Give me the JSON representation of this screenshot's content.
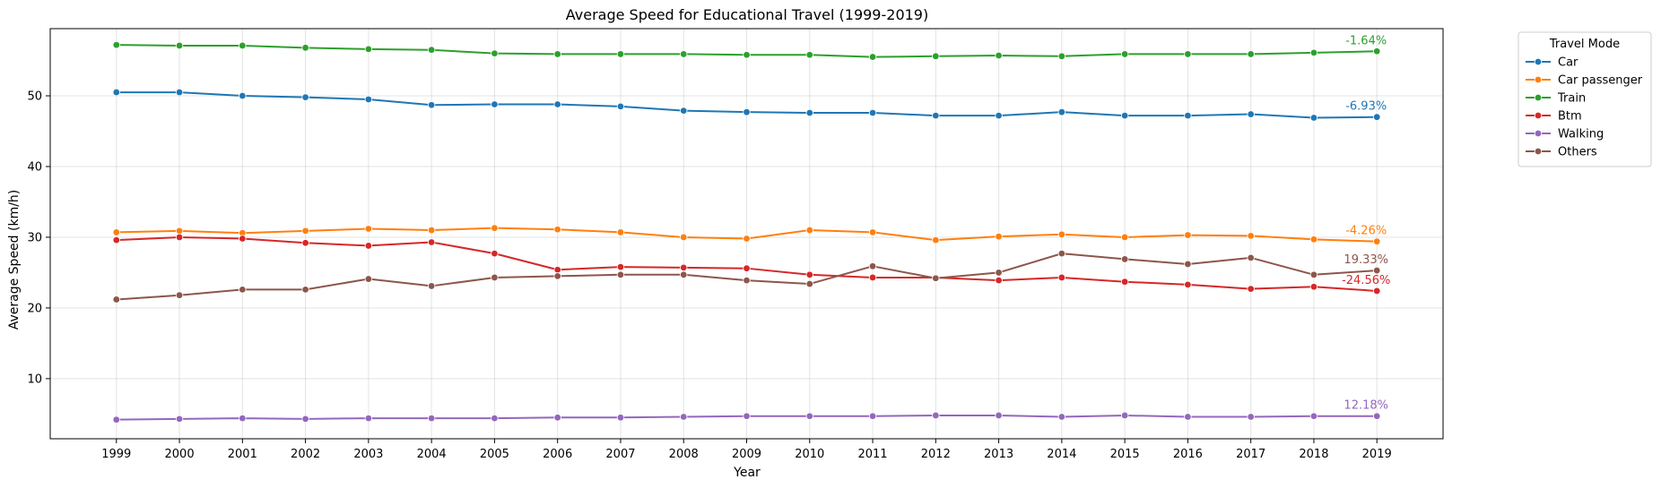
{
  "chart_data": {
    "type": "line",
    "title": "Average Speed for Educational Travel (1999-2019)",
    "xlabel": "Year",
    "ylabel": "Average Speed (km/h)",
    "x": [
      1999,
      2000,
      2001,
      2002,
      2003,
      2004,
      2005,
      2006,
      2007,
      2008,
      2009,
      2010,
      2011,
      2012,
      2013,
      2014,
      2015,
      2016,
      2017,
      2018,
      2019
    ],
    "xlim": [
      1997.95,
      2020.05
    ],
    "ylim": [
      1.5,
      59.5
    ],
    "yticks": [
      10,
      20,
      30,
      40,
      50
    ],
    "grid": true,
    "legend": {
      "title": "Travel Mode",
      "placement": "outside-top-right"
    },
    "series": [
      {
        "name": "Car",
        "color": "#1f77b4",
        "annotation": "-6.93%",
        "values": [
          50.5,
          50.5,
          50.0,
          49.8,
          49.5,
          48.7,
          48.8,
          48.8,
          48.5,
          47.9,
          47.7,
          47.6,
          47.6,
          47.2,
          47.2,
          47.7,
          47.2,
          47.2,
          47.4,
          46.9,
          47.0
        ]
      },
      {
        "name": "Car passenger",
        "color": "#ff7f0e",
        "annotation": "-4.26%",
        "values": [
          30.7,
          30.9,
          30.6,
          30.9,
          31.2,
          31.0,
          31.3,
          31.1,
          30.7,
          30.0,
          29.8,
          31.0,
          30.7,
          29.6,
          30.1,
          30.4,
          30.0,
          30.3,
          30.2,
          29.7,
          29.4
        ]
      },
      {
        "name": "Train",
        "color": "#2ca02c",
        "annotation": "-1.64%",
        "values": [
          57.2,
          57.1,
          57.1,
          56.8,
          56.6,
          56.5,
          56.0,
          55.9,
          55.9,
          55.9,
          55.8,
          55.8,
          55.5,
          55.6,
          55.7,
          55.6,
          55.9,
          55.9,
          55.9,
          56.1,
          56.3
        ]
      },
      {
        "name": "Btm",
        "color": "#d62728",
        "annotation": "-24.56%",
        "values": [
          29.6,
          30.0,
          29.8,
          29.2,
          28.8,
          29.3,
          27.7,
          25.4,
          25.8,
          25.7,
          25.6,
          24.7,
          24.3,
          24.3,
          23.9,
          24.3,
          23.7,
          23.3,
          22.7,
          23.0,
          22.4
        ]
      },
      {
        "name": "Walking",
        "color": "#9467bd",
        "annotation": "12.18%",
        "values": [
          4.2,
          4.3,
          4.4,
          4.3,
          4.4,
          4.4,
          4.4,
          4.5,
          4.5,
          4.6,
          4.7,
          4.7,
          4.7,
          4.8,
          4.8,
          4.6,
          4.8,
          4.6,
          4.6,
          4.7,
          4.7
        ]
      },
      {
        "name": "Others",
        "color": "#8c564b",
        "annotation": "19.33%",
        "values": [
          21.2,
          21.8,
          22.6,
          22.6,
          24.1,
          23.1,
          24.3,
          24.5,
          24.7,
          24.7,
          23.9,
          23.4,
          25.9,
          24.2,
          25.0,
          27.7,
          26.9,
          26.2,
          27.1,
          24.7,
          25.3
        ]
      }
    ]
  }
}
